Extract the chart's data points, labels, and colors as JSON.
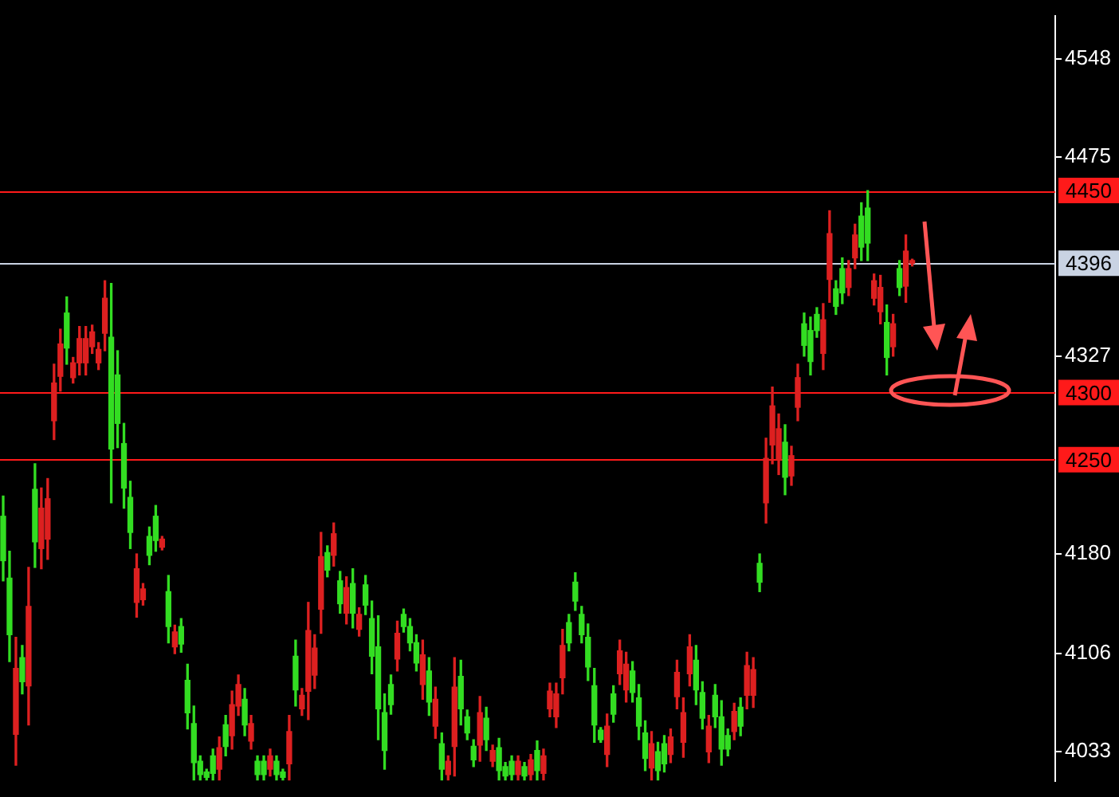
{
  "chart_data": {
    "type": "candlestick",
    "categories": [
      null,
      null,
      null,
      null,
      null,
      null,
      null,
      null,
      null,
      null,
      null,
      null,
      null,
      null,
      null,
      null,
      null,
      null,
      null,
      null,
      null,
      null,
      null,
      null,
      null,
      null,
      null,
      null,
      null,
      null,
      null,
      null,
      null,
      null,
      null,
      null,
      null,
      null,
      null,
      null,
      null,
      null,
      null,
      null,
      null,
      null,
      null,
      null,
      null,
      null,
      null,
      null,
      null,
      null,
      null,
      null,
      null,
      null,
      null,
      null,
      null,
      null,
      null,
      null,
      null,
      null,
      null,
      null,
      null,
      null,
      null,
      null,
      null,
      null,
      null,
      null,
      null,
      null,
      null,
      null,
      null,
      null,
      null,
      null,
      null,
      null,
      null,
      null,
      null,
      null,
      null,
      null,
      null,
      null,
      null,
      null,
      null,
      null,
      null,
      null,
      null,
      null,
      null,
      null,
      null,
      null,
      null,
      null,
      null,
      null,
      null,
      null,
      null,
      null,
      null,
      null,
      null,
      null,
      null,
      null,
      null,
      null,
      null,
      null,
      null,
      null,
      null,
      null,
      null,
      null,
      null,
      null,
      null,
      null,
      null,
      null,
      null,
      null,
      null,
      null,
      null,
      null,
      null,
      null,
      null,
      null,
      null,
      null,
      null,
      null,
      null,
      null,
      null,
      null,
      null,
      null,
      null,
      null,
      null,
      null,
      null,
      null,
      null,
      null,
      null,
      null
    ],
    "ohlc": [
      [
        4175,
        4223,
        4160,
        4208
      ],
      [
        4120,
        4182,
        4100,
        4162
      ],
      [
        4095,
        4118,
        4023,
        4046
      ],
      [
        4085,
        4112,
        4076,
        4103
      ],
      [
        4141,
        4170,
        4053,
        4082
      ],
      [
        4189,
        4247,
        4170,
        4228
      ],
      [
        4214,
        4229,
        4169,
        4184
      ],
      [
        4221,
        4236,
        4176,
        4191
      ],
      [
        4307,
        4321,
        4265,
        4279
      ],
      [
        4336,
        4347,
        4301,
        4312
      ],
      [
        4333,
        4371,
        4321,
        4359
      ],
      [
        4322,
        4326,
        4307,
        4311
      ],
      [
        4340,
        4349,
        4313,
        4322
      ],
      [
        4340,
        4349,
        4313,
        4322
      ],
      [
        4345,
        4350,
        4329,
        4334
      ],
      [
        4332,
        4337,
        4317,
        4322
      ],
      [
        4370,
        4383,
        4331,
        4344
      ],
      [
        4258,
        4381,
        4218,
        4341
      ],
      [
        4277,
        4331,
        4259,
        4313
      ],
      [
        4229,
        4277,
        4214,
        4262
      ],
      [
        4196,
        4234,
        4184,
        4222
      ],
      [
        4169,
        4180,
        4133,
        4144
      ],
      [
        4154,
        4158,
        4142,
        4146
      ],
      [
        4179,
        4200,
        4172,
        4193
      ],
      [
        4190,
        4216,
        4182,
        4208
      ],
      [
        4191,
        4193,
        4183,
        4185
      ],
      [
        4126,
        4164,
        4114,
        4152
      ],
      [
        4122,
        4127,
        4106,
        4111
      ],
      [
        4113,
        4132,
        4107,
        4126
      ],
      [
        4062,
        4098,
        4050,
        4086
      ],
      [
        4025,
        4067,
        4012,
        4054
      ],
      [
        4016,
        4030,
        4012,
        4026
      ],
      [
        4014,
        4020,
        4012,
        4018
      ],
      [
        4017,
        4035,
        4012,
        4030
      ],
      [
        4036,
        4044,
        4012,
        4020
      ],
      [
        4037,
        4060,
        4030,
        4053
      ],
      [
        4068,
        4078,
        4035,
        4045
      ],
      [
        4083,
        4090,
        4060,
        4067
      ],
      [
        4053,
        4080,
        4045,
        4072
      ],
      [
        4054,
        4060,
        4035,
        4041
      ],
      [
        4016,
        4030,
        4012,
        4026
      ],
      [
        4016,
        4030,
        4012,
        4026
      ],
      [
        4030,
        4035,
        4015,
        4020
      ],
      [
        4016,
        4030,
        4012,
        4026
      ],
      [
        4014,
        4020,
        4012,
        4018
      ],
      [
        4048,
        4060,
        4012,
        4024
      ],
      [
        4079,
        4116,
        4067,
        4104
      ],
      [
        4075,
        4080,
        4060,
        4065
      ],
      [
        4123,
        4144,
        4057,
        4078
      ],
      [
        4110,
        4120,
        4080,
        4090
      ],
      [
        4178,
        4196,
        4121,
        4139
      ],
      [
        4168,
        4186,
        4163,
        4181
      ],
      [
        4195,
        4203,
        4171,
        4179
      ],
      [
        4143,
        4167,
        4136,
        4160
      ],
      [
        4155,
        4163,
        4128,
        4136
      ],
      [
        4136,
        4169,
        4125,
        4158
      ],
      [
        4135,
        4140,
        4119,
        4124
      ],
      [
        4142,
        4164,
        4135,
        4157
      ],
      [
        4104,
        4145,
        4091,
        4132
      ],
      [
        4065,
        4134,
        4042,
        4111
      ],
      [
        4034,
        4076,
        4020,
        4062
      ],
      [
        4068,
        4090,
        4061,
        4083
      ],
      [
        4121,
        4130,
        4093,
        4102
      ],
      [
        4126,
        4139,
        4122,
        4135
      ],
      [
        4114,
        4132,
        4108,
        4126
      ],
      [
        4099,
        4120,
        4093,
        4114
      ],
      [
        4105,
        4116,
        4072,
        4083
      ],
      [
        4070,
        4103,
        4060,
        4093
      ],
      [
        4072,
        4081,
        4043,
        4052
      ],
      [
        4020,
        4047,
        4012,
        4039
      ],
      [
        4026,
        4030,
        4012,
        4016
      ],
      [
        4081,
        4103,
        4015,
        4037
      ],
      [
        4065,
        4101,
        4053,
        4089
      ],
      [
        4047,
        4064,
        4042,
        4059
      ],
      [
        4027,
        4042,
        4022,
        4037
      ],
      [
        4062,
        4074,
        4026,
        4038
      ],
      [
        4042,
        4066,
        4034,
        4058
      ],
      [
        4034,
        4038,
        4022,
        4026
      ],
      [
        4019,
        4043,
        4012,
        4036
      ],
      [
        4015,
        4025,
        4012,
        4022
      ],
      [
        4016,
        4030,
        4012,
        4026
      ],
      [
        4026,
        4030,
        4012,
        4016
      ],
      [
        4015,
        4025,
        4012,
        4022
      ],
      [
        4027,
        4031,
        4012,
        4016
      ],
      [
        4019,
        4041,
        4012,
        4034
      ],
      [
        4030,
        4035,
        4012,
        4017
      ],
      [
        4078,
        4084,
        4059,
        4065
      ],
      [
        4076,
        4084,
        4051,
        4059
      ],
      [
        4112,
        4124,
        4076,
        4088
      ],
      [
        4114,
        4135,
        4108,
        4129
      ],
      [
        4145,
        4166,
        4138,
        4159
      ],
      [
        4120,
        4141,
        4114,
        4135
      ],
      [
        4096,
        4128,
        4086,
        4118
      ],
      [
        4053,
        4095,
        4040,
        4082
      ],
      [
        4042,
        4051,
        4040,
        4049
      ],
      [
        4052,
        4061,
        4022,
        4031
      ],
      [
        4061,
        4082,
        4055,
        4076
      ],
      [
        4108,
        4116,
        4083,
        4091
      ],
      [
        4098,
        4107,
        4070,
        4079
      ],
      [
        4077,
        4100,
        4070,
        4093
      ],
      [
        4052,
        4083,
        4042,
        4073
      ],
      [
        4028,
        4056,
        4019,
        4047
      ],
      [
        4039,
        4048,
        4012,
        4021
      ],
      [
        4019,
        4040,
        4012,
        4033
      ],
      [
        4024,
        4045,
        4018,
        4039
      ],
      [
        4044,
        4050,
        4025,
        4031
      ],
      [
        4092,
        4101,
        4065,
        4074
      ],
      [
        4062,
        4073,
        4029,
        4040
      ],
      [
        4111,
        4120,
        4082,
        4091
      ],
      [
        4079,
        4112,
        4068,
        4101
      ],
      [
        4058,
        4085,
        4050,
        4077
      ],
      [
        4052,
        4060,
        4025,
        4033
      ],
      [
        4059,
        4083,
        4051,
        4075
      ],
      [
        4035,
        4071,
        4023,
        4059
      ],
      [
        4035,
        4050,
        4030,
        4045
      ],
      [
        4063,
        4069,
        4042,
        4048
      ],
      [
        4052,
        4073,
        4045,
        4066
      ],
      [
        4097,
        4107,
        4065,
        4075
      ],
      [
        4094,
        4103,
        4066,
        4075
      ],
      [
        4159,
        4180,
        4152,
        4173
      ],
      [
        4251,
        4266,
        4203,
        4218
      ],
      [
        4290,
        4304,
        4247,
        4261
      ],
      [
        4273,
        4284,
        4239,
        4250
      ],
      [
        4237,
        4276,
        4224,
        4263
      ],
      [
        4253,
        4260,
        4231,
        4238
      ],
      [
        4311,
        4321,
        4279,
        4289
      ],
      [
        4335,
        4359,
        4327,
        4351
      ],
      [
        4323,
        4356,
        4313,
        4346
      ],
      [
        4346,
        4363,
        4341,
        4358
      ],
      [
        4354,
        4366,
        4317,
        4329
      ],
      [
        4418,
        4435,
        4367,
        4384
      ],
      [
        4364,
        4383,
        4358,
        4377
      ],
      [
        4374,
        4400,
        4366,
        4392
      ],
      [
        4392,
        4398,
        4372,
        4378
      ],
      [
        4417,
        4425,
        4392,
        4400
      ],
      [
        4408,
        4441,
        4398,
        4431
      ],
      [
        4411,
        4450,
        4398,
        4437
      ],
      [
        4383,
        4388,
        4365,
        4370
      ],
      [
        4378,
        4387,
        4351,
        4360
      ],
      [
        4326,
        4365,
        4313,
        4352
      ],
      [
        4351,
        4358,
        4327,
        4334
      ],
      [
        4378,
        4398,
        4372,
        4392
      ],
      [
        4405,
        4417,
        4367,
        4379
      ],
      [
        4398,
        4399,
        4394,
        4396
      ],
      null,
      null,
      null,
      null,
      null,
      null,
      null,
      null,
      null,
      null,
      null,
      null,
      null,
      null,
      null,
      null,
      null,
      null,
      null,
      null,
      null,
      null
    ],
    "colors": [
      "#33dd22",
      "#33dd22",
      "#dd2020",
      "#33dd22",
      "#dd2020",
      "#33dd22",
      "#dd2020",
      "#dd2020",
      "#dd2020",
      "#dd2020",
      "#33dd22",
      "#dd2020",
      "#dd2020",
      "#dd2020",
      "#dd2020",
      "#dd2020",
      "#dd2020",
      "#33dd22",
      "#33dd22",
      "#33dd22",
      "#33dd22",
      "#dd2020",
      "#dd2020",
      "#33dd22",
      "#33dd22",
      "#dd2020",
      "#33dd22",
      "#dd2020",
      "#33dd22",
      "#33dd22",
      "#33dd22",
      "#33dd22",
      "#33dd22",
      "#33dd22",
      "#dd2020",
      "#33dd22",
      "#dd2020",
      "#dd2020",
      "#33dd22",
      "#dd2020",
      "#33dd22",
      "#33dd22",
      "#dd2020",
      "#33dd22",
      "#33dd22",
      "#dd2020",
      "#33dd22",
      "#dd2020",
      "#dd2020",
      "#dd2020",
      "#dd2020",
      "#33dd22",
      "#dd2020",
      "#33dd22",
      "#dd2020",
      "#33dd22",
      "#dd2020",
      "#33dd22",
      "#33dd22",
      "#33dd22",
      "#33dd22",
      "#33dd22",
      "#dd2020",
      "#33dd22",
      "#33dd22",
      "#33dd22",
      "#dd2020",
      "#33dd22",
      "#dd2020",
      "#33dd22",
      "#dd2020",
      "#dd2020",
      "#33dd22",
      "#33dd22",
      "#33dd22",
      "#dd2020",
      "#33dd22",
      "#dd2020",
      "#33dd22",
      "#33dd22",
      "#33dd22",
      "#dd2020",
      "#33dd22",
      "#dd2020",
      "#33dd22",
      "#dd2020",
      "#dd2020",
      "#dd2020",
      "#dd2020",
      "#33dd22",
      "#33dd22",
      "#33dd22",
      "#33dd22",
      "#33dd22",
      "#33dd22",
      "#dd2020",
      "#33dd22",
      "#dd2020",
      "#dd2020",
      "#33dd22",
      "#33dd22",
      "#33dd22",
      "#dd2020",
      "#33dd22",
      "#33dd22",
      "#dd2020",
      "#dd2020",
      "#dd2020",
      "#dd2020",
      "#33dd22",
      "#33dd22",
      "#dd2020",
      "#33dd22",
      "#33dd22",
      "#33dd22",
      "#dd2020",
      "#33dd22",
      "#dd2020",
      "#dd2020",
      "#33dd22",
      "#dd2020",
      "#dd2020",
      "#dd2020",
      "#33dd22",
      "#dd2020",
      "#dd2020",
      "#33dd22",
      "#33dd22",
      "#33dd22",
      "#dd2020",
      "#dd2020",
      "#33dd22",
      "#33dd22",
      "#dd2020",
      "#dd2020",
      "#33dd22",
      "#33dd22",
      "#dd2020",
      "#dd2020",
      "#33dd22",
      "#dd2020",
      "#33dd22",
      "#dd2020",
      "#dd2020",
      null,
      null,
      null,
      null,
      null,
      null,
      null,
      null,
      null,
      null,
      null,
      null,
      null,
      null,
      null,
      null,
      null,
      null,
      null,
      null,
      null,
      null
    ],
    "ylim": [
      4011,
      4580
    ],
    "yticks": [
      4548,
      4475,
      4327,
      4180,
      4106,
      4033
    ],
    "tick_labels": "y",
    "grid": false,
    "ref_lines": [
      {
        "axis": "y",
        "value": 4450,
        "label": "4450",
        "color": "#ff1a1a"
      },
      {
        "axis": "y",
        "value": 4396,
        "label": "4396",
        "color": "#c9d3e3"
      },
      {
        "axis": "y",
        "value": 4300,
        "label": "4300",
        "color": "#ff1a1a"
      },
      {
        "axis": "y",
        "value": 4250,
        "label": "4250",
        "color": "#ff1a1a"
      }
    ]
  }
}
